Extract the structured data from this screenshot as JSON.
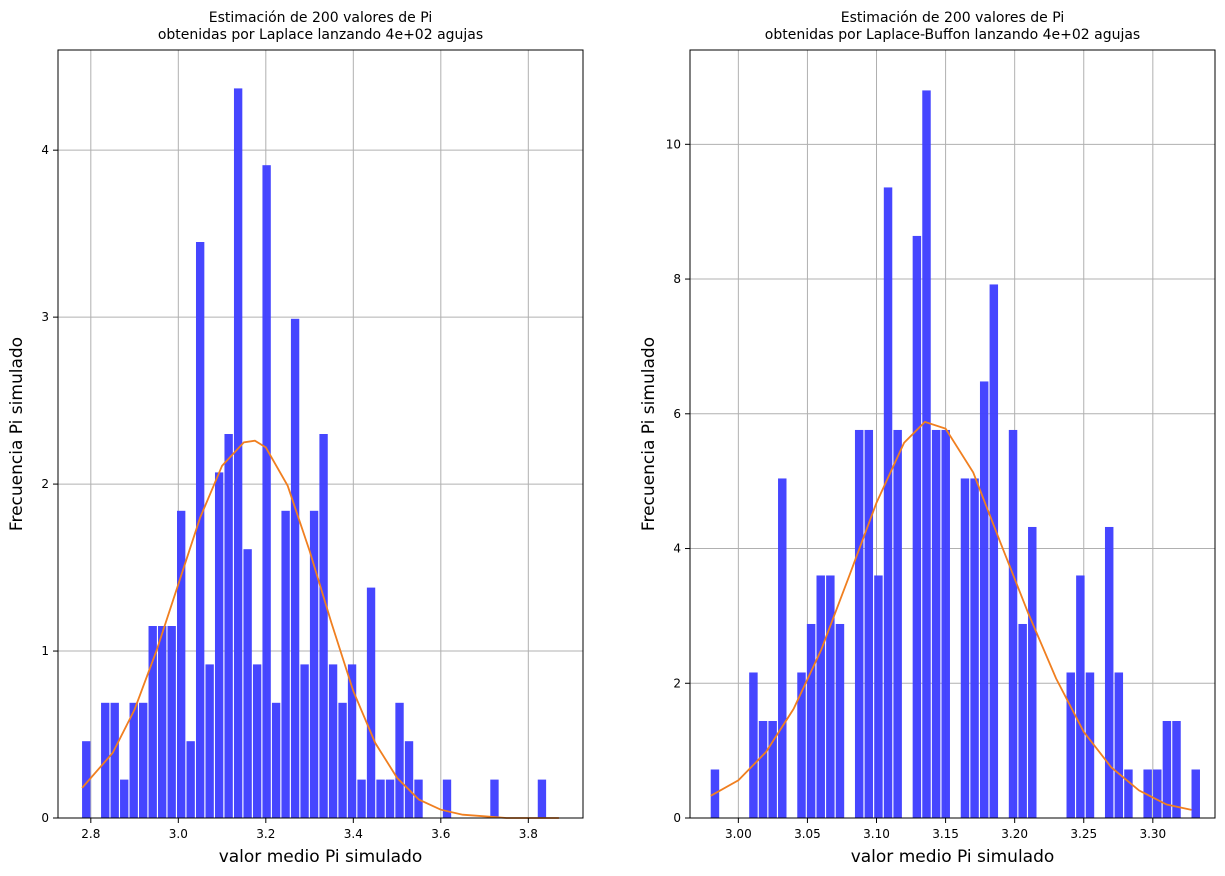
{
  "colors": {
    "bar": "#4040ff",
    "curve": "#f07f20",
    "grid": "#b0b0b0",
    "axes": "#000000"
  },
  "chart_data": [
    {
      "type": "bar",
      "title": "Estimación de 200 valores de Pi\nobtenidas por Laplace lanzando 4e+02 agujas",
      "xlabel": "valor medio Pi simulado",
      "ylabel": "Frecuencia Pi simulado",
      "xlim": [
        2.725,
        3.925
      ],
      "ylim": [
        0,
        4.6
      ],
      "xticks": [
        2.8,
        3.0,
        3.2,
        3.4,
        3.6,
        3.8
      ],
      "xtick_labels": [
        "2.8",
        "3.0",
        "3.2",
        "3.4",
        "3.6",
        "3.8"
      ],
      "yticks": [
        0,
        1,
        2,
        3,
        4
      ],
      "ytick_labels": [
        "0",
        "1",
        "2",
        "3",
        "4"
      ],
      "grid": true,
      "bin_start": 2.78,
      "bin_width": 0.0217,
      "values": [
        0.46,
        0,
        0.69,
        0.69,
        0.23,
        0.69,
        0.69,
        1.15,
        1.15,
        1.15,
        1.84,
        0.46,
        3.45,
        0.92,
        2.07,
        2.3,
        4.37,
        1.61,
        0.92,
        3.91,
        0.69,
        1.84,
        2.99,
        0.92,
        1.84,
        2.3,
        0.92,
        0.69,
        0.92,
        0.23,
        1.38,
        0.23,
        0.23,
        0.69,
        0.46,
        0.23,
        0,
        0,
        0.23,
        0,
        0,
        0,
        0,
        0.23,
        0,
        0,
        0,
        0,
        0.23
      ],
      "curve": {
        "name": "",
        "x": [
          2.78,
          2.85,
          2.9,
          2.95,
          3.0,
          3.05,
          3.1,
          3.15,
          3.175,
          3.2,
          3.25,
          3.3,
          3.35,
          3.4,
          3.45,
          3.5,
          3.55,
          3.6,
          3.65,
          3.7,
          3.75,
          3.8,
          3.87
        ],
        "y": [
          0.18,
          0.39,
          0.65,
          1.0,
          1.4,
          1.8,
          2.11,
          2.25,
          2.26,
          2.22,
          1.99,
          1.6,
          1.17,
          0.76,
          0.45,
          0.24,
          0.11,
          0.05,
          0.02,
          0.01,
          0.0,
          0.0,
          0.0
        ]
      }
    },
    {
      "type": "bar",
      "title": "Estimación de 200 valores de Pi\nobtenidas por Laplace-Buffon lanzando 4e+02 agujas",
      "xlabel": "valor medio Pi simulado",
      "ylabel": "Frecuencia Pi simulado",
      "xlim": [
        2.965,
        3.345
      ],
      "ylim": [
        0,
        11.4
      ],
      "xticks": [
        3.0,
        3.05,
        3.1,
        3.15,
        3.2,
        3.25,
        3.3
      ],
      "xtick_labels": [
        "3.00",
        "3.05",
        "3.10",
        "3.15",
        "3.20",
        "3.25",
        "3.30"
      ],
      "yticks": [
        0,
        2,
        4,
        6,
        8,
        10
      ],
      "ytick_labels": [
        "0",
        "2",
        "4",
        "6",
        "8",
        "10"
      ],
      "grid": true,
      "bin_start": 2.98,
      "bin_width": 0.00696,
      "values": [
        0.72,
        0,
        0,
        0,
        2.16,
        1.44,
        1.44,
        5.04,
        0,
        2.16,
        2.88,
        3.6,
        3.6,
        2.88,
        0,
        5.76,
        5.76,
        3.6,
        9.36,
        5.76,
        0,
        8.64,
        10.8,
        5.76,
        5.76,
        0,
        5.04,
        5.04,
        6.48,
        7.92,
        0,
        5.76,
        2.88,
        4.32,
        0,
        0,
        0,
        2.16,
        3.6,
        2.16,
        0,
        4.32,
        2.16,
        0.72,
        0,
        0.72,
        0.72,
        1.44,
        1.44,
        0,
        0.72
      ],
      "curve": {
        "name": "",
        "x": [
          2.98,
          3.0,
          3.02,
          3.04,
          3.06,
          3.08,
          3.1,
          3.12,
          3.135,
          3.15,
          3.17,
          3.19,
          3.21,
          3.23,
          3.25,
          3.27,
          3.29,
          3.31,
          3.328
        ],
        "y": [
          0.33,
          0.56,
          0.98,
          1.62,
          2.5,
          3.58,
          4.68,
          5.57,
          5.88,
          5.78,
          5.13,
          4.07,
          3.03,
          2.07,
          1.28,
          0.75,
          0.41,
          0.2,
          0.12
        ]
      }
    }
  ]
}
